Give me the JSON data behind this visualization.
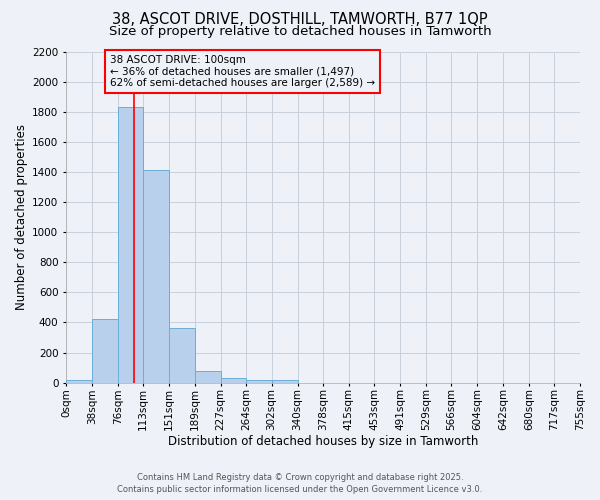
{
  "title": "38, ASCOT DRIVE, DOSTHILL, TAMWORTH, B77 1QP",
  "subtitle": "Size of property relative to detached houses in Tamworth",
  "xlabel": "Distribution of detached houses by size in Tamworth",
  "ylabel": "Number of detached properties",
  "bar_values": [
    20,
    420,
    1830,
    1410,
    360,
    80,
    30,
    20,
    20,
    0,
    0,
    0,
    0,
    0,
    0,
    0,
    0,
    0,
    0,
    0
  ],
  "bin_edges": [
    0,
    38,
    76,
    113,
    151,
    189,
    227,
    264,
    302,
    340,
    378,
    415,
    453,
    491,
    529,
    566,
    604,
    642,
    680,
    717,
    755
  ],
  "tick_labels": [
    "0sqm",
    "38sqm",
    "76sqm",
    "113sqm",
    "151sqm",
    "189sqm",
    "227sqm",
    "264sqm",
    "302sqm",
    "340sqm",
    "378sqm",
    "415sqm",
    "453sqm",
    "491sqm",
    "529sqm",
    "566sqm",
    "604sqm",
    "642sqm",
    "680sqm",
    "717sqm",
    "755sqm"
  ],
  "bar_color": "#b8d0eb",
  "bar_edge_color": "#6aaed6",
  "grid_color": "#c8d0dc",
  "background_color": "#eef2f8",
  "red_line_x": 100,
  "annotation_text": "38 ASCOT DRIVE: 100sqm\n← 36% of detached houses are smaller (1,497)\n62% of semi-detached houses are larger (2,589) →",
  "ylim": [
    0,
    2200
  ],
  "yticks": [
    0,
    200,
    400,
    600,
    800,
    1000,
    1200,
    1400,
    1600,
    1800,
    2000,
    2200
  ],
  "title_fontsize": 10.5,
  "subtitle_fontsize": 9.5,
  "axis_fontsize": 8.5,
  "tick_fontsize": 7.5,
  "annot_fontsize": 7.5,
  "footer_line1": "Contains HM Land Registry data © Crown copyright and database right 2025.",
  "footer_line2": "Contains public sector information licensed under the Open Government Licence v3.0."
}
